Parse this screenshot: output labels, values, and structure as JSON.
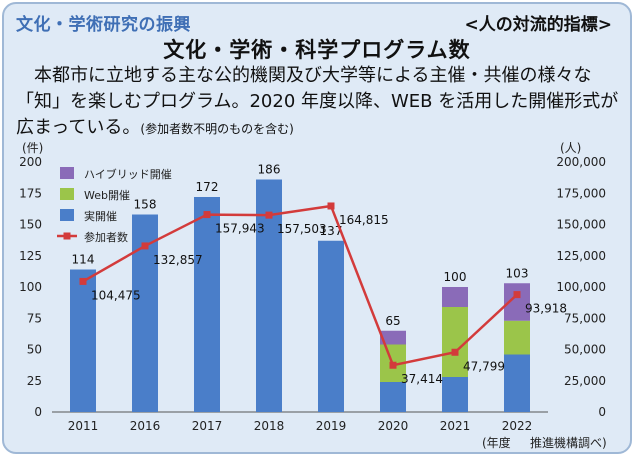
{
  "header": {
    "section": "文化・学術研究の振興",
    "tag": "<人の対流的指標>",
    "title": "文化・学術・科学プログラム数",
    "description": "本都市に立地する主な公的機関及び大学等による主催・共催の様々な「知」を楽しむプログラム。2020 年度以降、WEB を活用した開催形式が広まっている。",
    "description_note": "(参加者数不明のものを含む)"
  },
  "colors": {
    "hybrid": "#8a6bb8",
    "web": "#9bc54a",
    "inperson": "#4a7ec9",
    "participants": "#d33b3b"
  },
  "chart_data": {
    "type": "bar",
    "categories": [
      "2011",
      "2016",
      "2017",
      "2018",
      "2019",
      "2020",
      "2021",
      "2022"
    ],
    "series": [
      {
        "name": "ハイブリッド開催",
        "values": [
          0,
          0,
          0,
          0,
          0,
          11,
          16,
          30
        ]
      },
      {
        "name": "Web開催",
        "values": [
          0,
          0,
          0,
          0,
          0,
          30,
          56,
          27
        ]
      },
      {
        "name": "実開催",
        "values": [
          114,
          158,
          172,
          186,
          137,
          24,
          28,
          46
        ]
      },
      {
        "name": "参加者数",
        "type": "line",
        "axis": "right",
        "values": [
          104475,
          132857,
          157943,
          157503,
          164815,
          37414,
          47799,
          93918
        ]
      }
    ],
    "totals": [
      114,
      158,
      172,
      186,
      137,
      65,
      100,
      103
    ],
    "total_labels": [
      "114",
      "158",
      "172",
      "186",
      "137",
      "65",
      "100",
      "103"
    ],
    "participant_labels": [
      "104,475",
      "132,857",
      "157,943",
      "157,503",
      "164,815",
      "37,414",
      "47,799",
      "93,918"
    ],
    "left_axis": {
      "unit": "(件)",
      "min": 0,
      "max": 200,
      "ticks": [
        0,
        25,
        50,
        75,
        100,
        125,
        150,
        175,
        200
      ]
    },
    "right_axis": {
      "unit": "(人)",
      "min": 0,
      "max": 200000,
      "ticks": [
        "0",
        "25,000",
        "50,000",
        "75,000",
        "100,000",
        "125,000",
        "150,000",
        "175,000",
        "200,000"
      ]
    },
    "x_unit": "(年度",
    "source": "推進機構調べ)",
    "legend": [
      "ハイブリッド開催",
      "Web開催",
      "実開催",
      "参加者数"
    ],
    "legend_position": "top-left",
    "grid": false
  }
}
